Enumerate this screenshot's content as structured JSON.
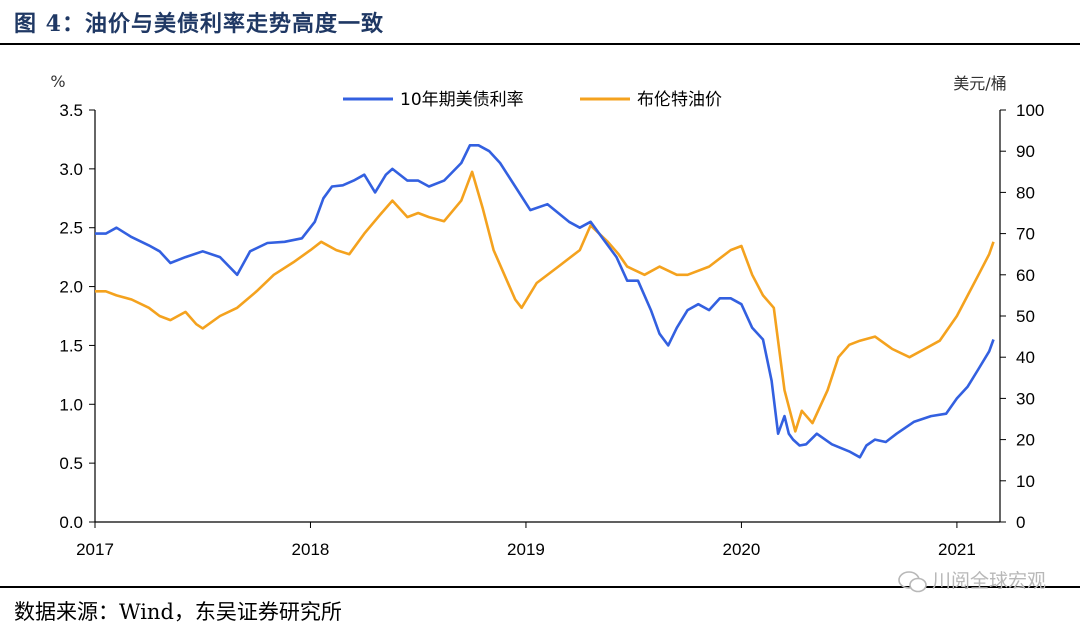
{
  "figure": {
    "title": "图 4：油价与美债利率走势高度一致",
    "source": "数据来源：Wind，东吴证券研究所",
    "watermark": "川阅全球宏观"
  },
  "colors": {
    "treasury": "#3360e0",
    "brent": "#f4a21e",
    "title": "#1f3864",
    "watermark": "#b8b8b8"
  },
  "chart_data": {
    "type": "line",
    "title": "",
    "left_axis": {
      "unit": "%",
      "range": [
        0,
        3.5
      ],
      "ticks": [
        "0.0",
        "0.5",
        "1.0",
        "1.5",
        "2.0",
        "2.5",
        "3.0",
        "3.5"
      ]
    },
    "right_axis": {
      "unit": "美元/桶",
      "range": [
        0,
        100
      ],
      "ticks": [
        "0",
        "10",
        "20",
        "30",
        "40",
        "50",
        "60",
        "70",
        "80",
        "90",
        "100"
      ]
    },
    "x_axis": {
      "range": [
        2017.0,
        2021.2
      ],
      "ticks": [
        "2017",
        "2018",
        "2019",
        "2020",
        "2021"
      ]
    },
    "legend": {
      "placement": "top-center"
    },
    "grid": false,
    "series": [
      {
        "name": "10年期美债利率",
        "axis": "left",
        "x": [
          2017.0,
          2017.05,
          2017.1,
          2017.17,
          2017.25,
          2017.3,
          2017.35,
          2017.42,
          2017.5,
          2017.58,
          2017.66,
          2017.72,
          2017.8,
          2017.88,
          2017.96,
          2018.02,
          2018.06,
          2018.1,
          2018.15,
          2018.2,
          2018.25,
          2018.3,
          2018.35,
          2018.38,
          2018.45,
          2018.5,
          2018.55,
          2018.62,
          2018.7,
          2018.74,
          2018.78,
          2018.83,
          2018.88,
          2018.95,
          2019.02,
          2019.1,
          2019.2,
          2019.25,
          2019.3,
          2019.36,
          2019.42,
          2019.47,
          2019.52,
          2019.58,
          2019.62,
          2019.66,
          2019.7,
          2019.75,
          2019.8,
          2019.85,
          2019.9,
          2019.95,
          2020.0,
          2020.05,
          2020.1,
          2020.14,
          2020.17,
          2020.2,
          2020.22,
          2020.24,
          2020.27,
          2020.3,
          2020.35,
          2020.42,
          2020.5,
          2020.55,
          2020.58,
          2020.62,
          2020.67,
          2020.72,
          2020.8,
          2020.88,
          2020.95,
          2021.0,
          2021.05,
          2021.1,
          2021.15,
          2021.17
        ],
        "y": [
          2.45,
          2.45,
          2.5,
          2.42,
          2.35,
          2.3,
          2.2,
          2.25,
          2.3,
          2.25,
          2.1,
          2.3,
          2.37,
          2.38,
          2.41,
          2.55,
          2.75,
          2.85,
          2.86,
          2.9,
          2.95,
          2.8,
          2.95,
          3.0,
          2.9,
          2.9,
          2.85,
          2.9,
          3.05,
          3.2,
          3.2,
          3.15,
          3.05,
          2.85,
          2.65,
          2.7,
          2.55,
          2.5,
          2.55,
          2.4,
          2.25,
          2.05,
          2.05,
          1.8,
          1.6,
          1.5,
          1.65,
          1.8,
          1.85,
          1.8,
          1.9,
          1.9,
          1.85,
          1.65,
          1.55,
          1.2,
          0.75,
          0.9,
          0.75,
          0.7,
          0.65,
          0.66,
          0.75,
          0.66,
          0.6,
          0.55,
          0.65,
          0.7,
          0.68,
          0.75,
          0.85,
          0.9,
          0.92,
          1.05,
          1.15,
          1.3,
          1.45,
          1.55
        ]
      },
      {
        "name": "布伦特油价",
        "axis": "right",
        "x": [
          2017.0,
          2017.05,
          2017.1,
          2017.17,
          2017.25,
          2017.3,
          2017.35,
          2017.42,
          2017.47,
          2017.5,
          2017.58,
          2017.66,
          2017.75,
          2017.83,
          2017.92,
          2018.0,
          2018.05,
          2018.12,
          2018.18,
          2018.25,
          2018.33,
          2018.38,
          2018.45,
          2018.5,
          2018.55,
          2018.62,
          2018.7,
          2018.75,
          2018.8,
          2018.85,
          2018.9,
          2018.95,
          2018.98,
          2019.05,
          2019.15,
          2019.25,
          2019.3,
          2019.38,
          2019.43,
          2019.47,
          2019.55,
          2019.62,
          2019.7,
          2019.75,
          2019.85,
          2019.95,
          2020.0,
          2020.05,
          2020.1,
          2020.15,
          2020.2,
          2020.25,
          2020.28,
          2020.33,
          2020.4,
          2020.45,
          2020.5,
          2020.55,
          2020.62,
          2020.7,
          2020.78,
          2020.85,
          2020.92,
          2021.0,
          2021.05,
          2021.1,
          2021.15,
          2021.17
        ],
        "y": [
          56,
          56,
          55,
          54,
          52,
          50,
          49,
          51,
          48,
          47,
          50,
          52,
          56,
          60,
          63,
          66,
          68,
          66,
          65,
          70,
          75,
          78,
          74,
          75,
          74,
          73,
          78,
          85,
          76,
          66,
          60,
          54,
          52,
          58,
          62,
          66,
          72,
          68,
          65,
          62,
          60,
          62,
          60,
          60,
          62,
          66,
          67,
          60,
          55,
          52,
          32,
          22,
          27,
          24,
          32,
          40,
          43,
          44,
          45,
          42,
          40,
          42,
          44,
          50,
          55,
          60,
          65,
          68
        ]
      }
    ]
  }
}
